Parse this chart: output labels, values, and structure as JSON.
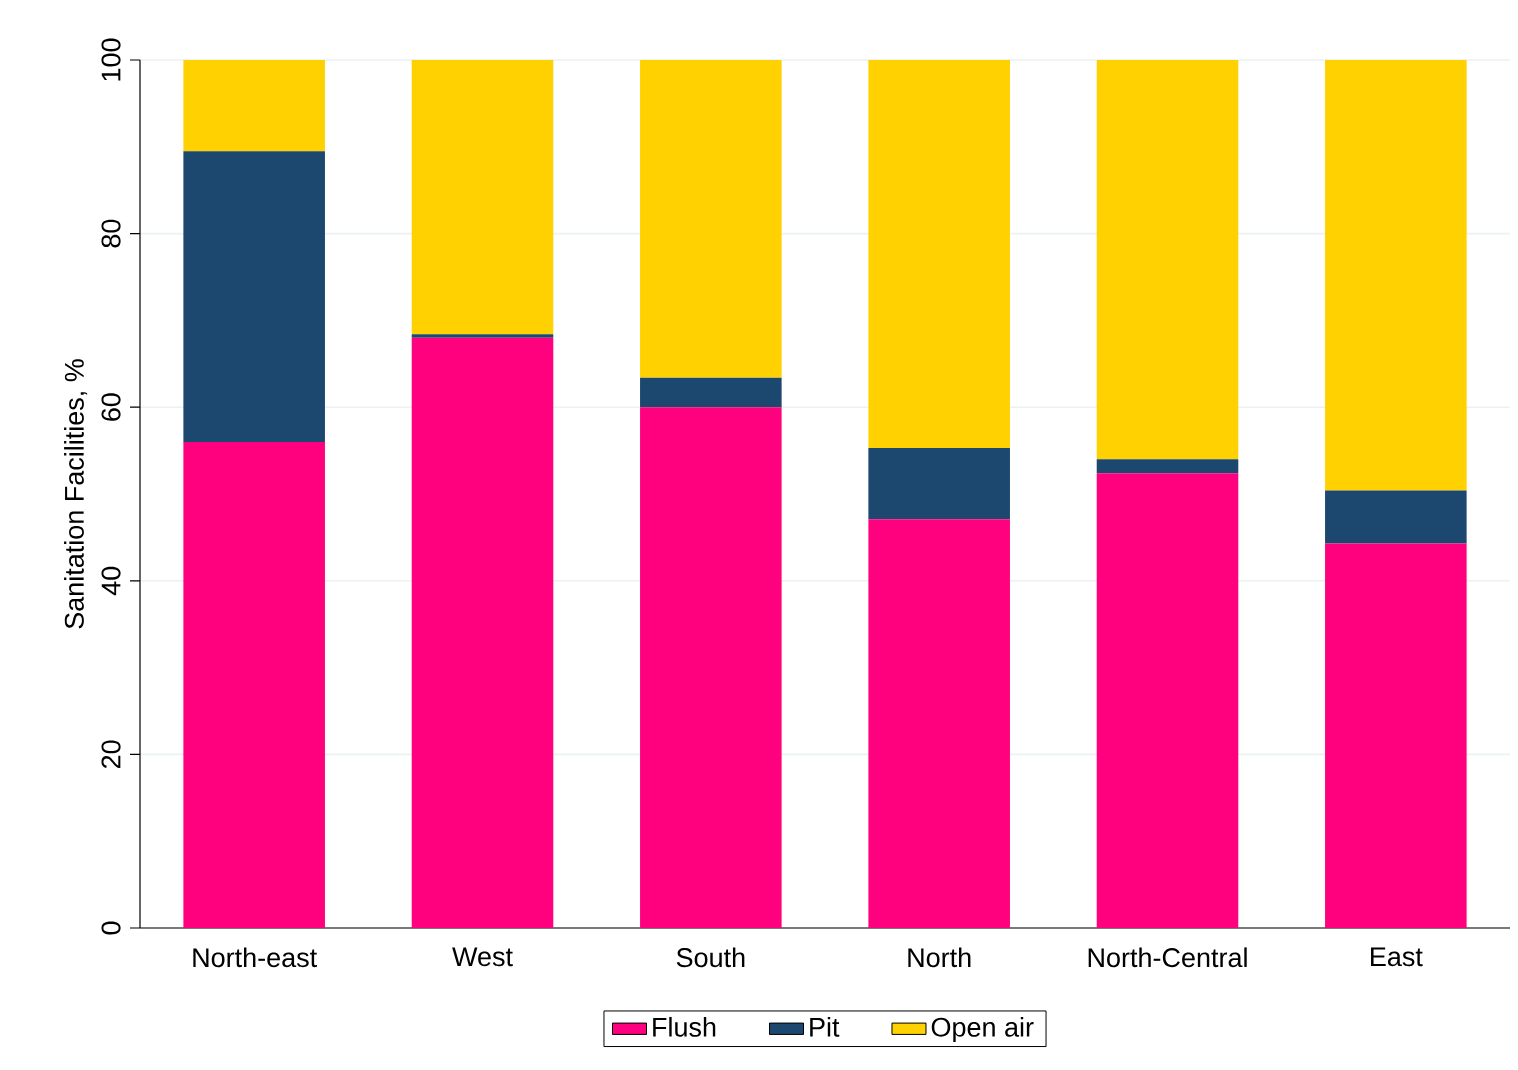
{
  "chart_data": {
    "type": "bar",
    "stacked": true,
    "ylabel": "Sanitation Facilities, %",
    "categories": [
      "North-east",
      "West",
      "South",
      "North",
      "North-Central",
      "East"
    ],
    "series": [
      {
        "name": "Flush",
        "color": "#ff007f",
        "values": [
          56,
          68,
          60,
          47.1,
          52.4,
          44.3
        ]
      },
      {
        "name": "Pit",
        "color": "#1c476f",
        "values": [
          33.5,
          0.4,
          3.4,
          8.2,
          1.6,
          6.1
        ]
      },
      {
        "name": "Open air",
        "color": "#ffd100",
        "values": [
          10.5,
          31.6,
          36.6,
          44.7,
          46,
          49.6
        ]
      }
    ],
    "ylim": [
      0,
      100
    ],
    "yticks": [
      0,
      20,
      40,
      60,
      80,
      100
    ],
    "grid": "y",
    "legend": "bottom"
  }
}
